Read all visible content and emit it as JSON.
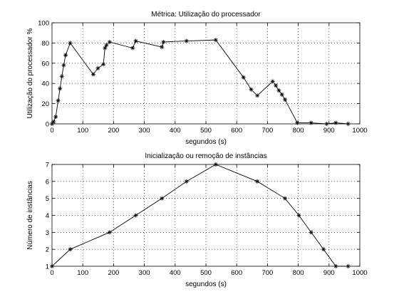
{
  "figure": {
    "background": "#ffffff",
    "line_color": "#000000"
  },
  "chart_data": [
    {
      "type": "line",
      "title": "Métrica: Utilização do processador",
      "xlabel": "segundos (s)",
      "ylabel": "Utilização do processador %",
      "xlim": [
        0,
        1000
      ],
      "ylim": [
        0,
        100
      ],
      "xticks": [
        0,
        100,
        200,
        300,
        400,
        500,
        600,
        700,
        800,
        900,
        1000
      ],
      "yticks": [
        0,
        20,
        40,
        60,
        80,
        100
      ],
      "xtick_labels": [
        "0",
        "100",
        "200",
        "300",
        "400",
        "500",
        "600",
        "700",
        "800",
        "900",
        "1000"
      ],
      "ytick_labels": [
        "0",
        "20",
        "40",
        "60",
        "80",
        "100"
      ],
      "grid": true,
      "marker": "asterisk",
      "color": "#000000",
      "series": [
        {
          "x": [
            0,
            5,
            12,
            20,
            26,
            32,
            38,
            44,
            59,
            134,
            149,
            167,
            172,
            177,
            187,
            262,
            272,
            357,
            362,
            437,
            532,
            622,
            647,
            667,
            717,
            727,
            737,
            747,
            757,
            797,
            842,
            892,
            922,
            962
          ],
          "y": [
            0,
            2,
            7,
            23,
            35,
            47,
            58,
            68,
            80,
            49,
            55,
            59,
            75,
            78,
            81,
            75,
            82,
            76,
            81,
            82,
            83,
            46,
            34,
            28,
            42,
            38,
            33,
            29,
            24,
            1,
            1,
            0,
            1,
            0
          ]
        }
      ]
    },
    {
      "type": "line",
      "title": "Inicialização ou remoção de instâncias",
      "xlabel": "segundos (s)",
      "ylabel": "Número de instâncias",
      "xlim": [
        0,
        1000
      ],
      "ylim": [
        1,
        7
      ],
      "xticks": [
        0,
        100,
        200,
        300,
        400,
        500,
        600,
        700,
        800,
        900,
        1000
      ],
      "yticks": [
        1,
        2,
        3,
        4,
        5,
        6,
        7
      ],
      "xtick_labels": [
        "0",
        "100",
        "200",
        "300",
        "400",
        "500",
        "600",
        "700",
        "800",
        "900",
        "1000"
      ],
      "ytick_labels": [
        "1",
        "2",
        "3",
        "4",
        "5",
        "6",
        "7"
      ],
      "grid": true,
      "marker": "asterisk",
      "color": "#000000",
      "series": [
        {
          "x": [
            0,
            59,
            187,
            272,
            357,
            437,
            532,
            667,
            757,
            802,
            842,
            882,
            922,
            962
          ],
          "y": [
            1,
            2,
            3,
            4,
            5,
            6,
            7,
            6,
            5,
            4,
            3,
            2,
            1,
            1
          ]
        }
      ]
    }
  ]
}
